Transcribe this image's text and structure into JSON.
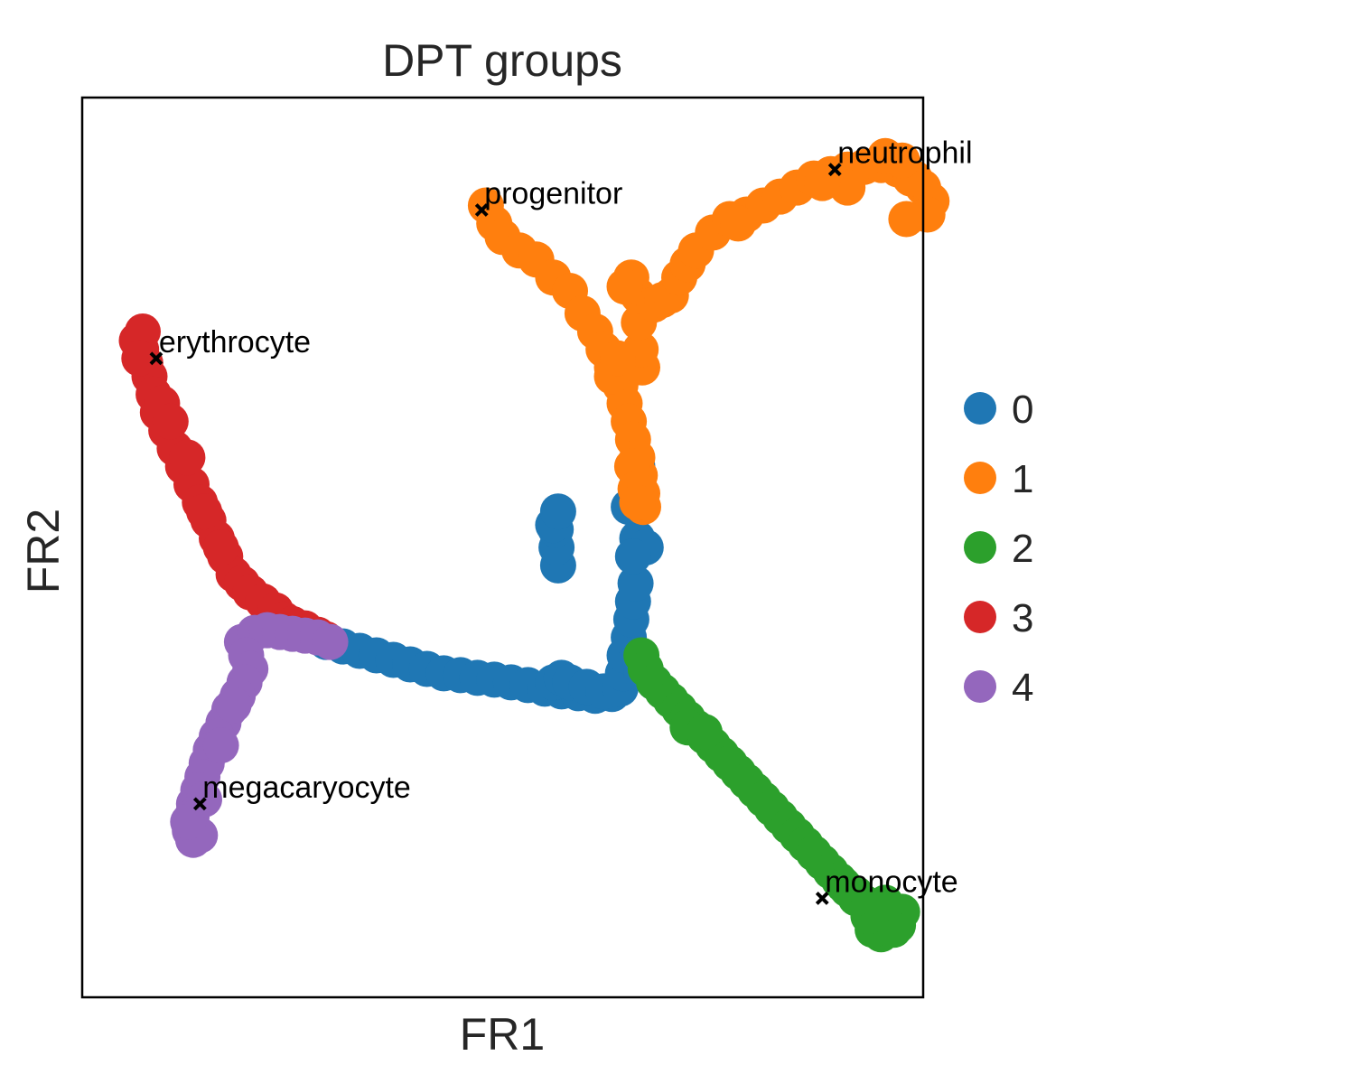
{
  "chart_data": {
    "type": "scatter",
    "title": "DPT groups",
    "xlabel": "FR1",
    "ylabel": "FR2",
    "xlim": [
      0,
      100
    ],
    "ylim": [
      0,
      100
    ],
    "grid": false,
    "legend_position": "right-center",
    "series": [
      {
        "name": "0",
        "color": "#1f77b4",
        "points": [
          [
            29,
            39.5
          ],
          [
            31,
            39
          ],
          [
            33,
            38.5
          ],
          [
            35,
            38
          ],
          [
            37,
            37.5
          ],
          [
            39,
            37
          ],
          [
            41,
            36.5
          ],
          [
            43,
            36
          ],
          [
            45,
            35.8
          ],
          [
            47,
            35.5
          ],
          [
            49,
            35.3
          ],
          [
            51,
            35
          ],
          [
            53,
            34.7
          ],
          [
            55,
            34.3
          ],
          [
            57,
            34
          ],
          [
            59,
            33.8
          ],
          [
            61,
            33.5
          ],
          [
            63,
            33.7
          ],
          [
            56,
            35
          ],
          [
            57,
            35.5
          ],
          [
            58,
            35
          ],
          [
            60,
            34.5
          ],
          [
            62,
            34
          ],
          [
            64,
            34.3
          ],
          [
            64.3,
            36
          ],
          [
            64.5,
            38
          ],
          [
            65,
            40
          ],
          [
            65.3,
            42
          ],
          [
            65.5,
            44
          ],
          [
            65.8,
            46
          ],
          [
            56.6,
            48
          ],
          [
            56.4,
            50
          ],
          [
            56.3,
            52
          ],
          [
            56,
            52.5
          ],
          [
            56.6,
            54
          ],
          [
            65,
            54.5
          ],
          [
            66,
            55.5
          ],
          [
            66,
            57
          ],
          [
            66,
            59
          ],
          [
            66,
            51
          ],
          [
            67,
            50
          ],
          [
            65.5,
            49
          ],
          [
            66.5,
            36
          ],
          [
            68,
            35
          ]
        ]
      },
      {
        "name": "1",
        "color": "#ff7f0e",
        "points": [
          [
            48,
            88
          ],
          [
            49,
            86
          ],
          [
            50,
            84.5
          ],
          [
            52,
            83
          ],
          [
            54,
            82
          ],
          [
            56,
            80
          ],
          [
            58,
            78.5
          ],
          [
            59.5,
            76
          ],
          [
            61,
            74
          ],
          [
            62,
            72
          ],
          [
            63,
            70
          ],
          [
            64,
            68
          ],
          [
            64.5,
            66
          ],
          [
            65,
            64
          ],
          [
            65.5,
            62
          ],
          [
            66,
            60
          ],
          [
            66.3,
            58
          ],
          [
            66.6,
            56
          ],
          [
            66.7,
            54.5
          ],
          [
            66.6,
            70
          ],
          [
            66.4,
            72
          ],
          [
            66.2,
            75
          ],
          [
            66.1,
            78
          ],
          [
            65.3,
            80
          ],
          [
            64.5,
            79
          ],
          [
            68,
            77
          ],
          [
            69,
            77.5
          ],
          [
            70,
            78
          ],
          [
            71,
            80
          ],
          [
            72,
            81.5
          ],
          [
            73,
            83
          ],
          [
            75,
            85
          ],
          [
            77,
            86.5
          ],
          [
            79,
            87
          ],
          [
            81,
            88
          ],
          [
            83,
            89
          ],
          [
            85,
            90
          ],
          [
            87,
            91
          ],
          [
            89,
            91.5
          ],
          [
            91,
            92
          ],
          [
            93,
            92.3
          ],
          [
            95,
            92.5
          ],
          [
            97,
            92
          ],
          [
            98.5,
            91
          ],
          [
            100,
            90
          ],
          [
            101,
            88.5
          ],
          [
            100.5,
            87
          ],
          [
            98,
            86.5
          ],
          [
            99,
            91
          ],
          [
            97.5,
            93
          ],
          [
            95.5,
            93.5
          ],
          [
            91,
            90
          ],
          [
            88,
            90.5
          ],
          [
            78,
            86
          ],
          [
            63,
            69
          ],
          [
            63.7,
            71
          ],
          [
            65.4,
            59
          ],
          [
            65.8,
            56.5
          ],
          [
            66,
            55
          ]
        ]
      },
      {
        "name": "2",
        "color": "#2ca02c",
        "points": [
          [
            66.5,
            38
          ],
          [
            67,
            36.5
          ],
          [
            68,
            35
          ],
          [
            69,
            34
          ],
          [
            70,
            33
          ],
          [
            71,
            32
          ],
          [
            72,
            31
          ],
          [
            73,
            30
          ],
          [
            74,
            29
          ],
          [
            75,
            28
          ],
          [
            76,
            27
          ],
          [
            77,
            26
          ],
          [
            78,
            25
          ],
          [
            79,
            24
          ],
          [
            80,
            23
          ],
          [
            81,
            22
          ],
          [
            82,
            21
          ],
          [
            83,
            20
          ],
          [
            84,
            19
          ],
          [
            85,
            18
          ],
          [
            86,
            17
          ],
          [
            87,
            16
          ],
          [
            88,
            15
          ],
          [
            89,
            14
          ],
          [
            90,
            13
          ],
          [
            91,
            12
          ],
          [
            92,
            11.5
          ],
          [
            93,
            10.5
          ],
          [
            94,
            9.5
          ],
          [
            95,
            9
          ],
          [
            96,
            8.5
          ],
          [
            97,
            8
          ],
          [
            97.5,
            9.5
          ],
          [
            96.5,
            7.5
          ],
          [
            95,
            7
          ],
          [
            94,
            7.5
          ],
          [
            93.5,
            9
          ],
          [
            95.5,
            10.5
          ],
          [
            92,
            11
          ],
          [
            90.5,
            12.5
          ],
          [
            72,
            30
          ],
          [
            74,
            29.5
          ]
        ]
      },
      {
        "name": "3",
        "color": "#d62728",
        "points": [
          [
            7,
            72
          ],
          [
            7.5,
            70.5
          ],
          [
            8,
            69
          ],
          [
            8.5,
            67
          ],
          [
            9,
            65
          ],
          [
            10,
            63
          ],
          [
            11,
            61
          ],
          [
            12,
            59
          ],
          [
            13,
            57
          ],
          [
            14,
            55
          ],
          [
            15,
            53
          ],
          [
            16,
            51
          ],
          [
            17,
            49
          ],
          [
            18,
            47
          ],
          [
            19,
            46
          ],
          [
            20,
            45
          ],
          [
            21.5,
            44
          ],
          [
            23,
            43
          ],
          [
            24,
            42
          ],
          [
            25,
            41.5
          ],
          [
            26.5,
            41
          ],
          [
            28,
            40.3
          ],
          [
            29,
            39.8
          ],
          [
            6.5,
            73
          ],
          [
            7.2,
            74
          ],
          [
            6.8,
            71
          ],
          [
            9.5,
            66
          ],
          [
            10.5,
            64
          ],
          [
            12.5,
            60
          ],
          [
            14.5,
            54
          ],
          [
            16.5,
            50
          ]
        ]
      },
      {
        "name": "4",
        "color": "#9467bd",
        "points": [
          [
            19,
            39.5
          ],
          [
            20.5,
            40.5
          ],
          [
            22,
            40.8
          ],
          [
            23.5,
            40.6
          ],
          [
            25,
            40.4
          ],
          [
            26.5,
            40.2
          ],
          [
            28,
            40
          ],
          [
            29.5,
            39.5
          ],
          [
            19.5,
            38
          ],
          [
            20,
            36.5
          ],
          [
            19.3,
            35
          ],
          [
            18.5,
            33.5
          ],
          [
            17.5,
            32
          ],
          [
            16.8,
            30.5
          ],
          [
            16,
            29
          ],
          [
            15.3,
            27.5
          ],
          [
            14.8,
            26
          ],
          [
            14.3,
            24.5
          ],
          [
            13.8,
            23
          ],
          [
            13.3,
            21.5
          ],
          [
            13,
            20
          ],
          [
            12.8,
            18.5
          ],
          [
            13.2,
            17.5
          ],
          [
            14,
            18
          ],
          [
            12.6,
            19.5
          ],
          [
            14.5,
            22
          ],
          [
            16.5,
            28
          ],
          [
            18,
            32.5
          ]
        ]
      }
    ],
    "annotations": [
      {
        "label": "progenitor",
        "x": 47.5,
        "y": 87.5
      },
      {
        "label": "neutrophil",
        "x": 89.5,
        "y": 92
      },
      {
        "label": "erythrocyte",
        "x": 8.8,
        "y": 71
      },
      {
        "label": "megacaryocyte",
        "x": 14,
        "y": 21.5
      },
      {
        "label": "monocyte",
        "x": 88,
        "y": 11
      }
    ]
  }
}
